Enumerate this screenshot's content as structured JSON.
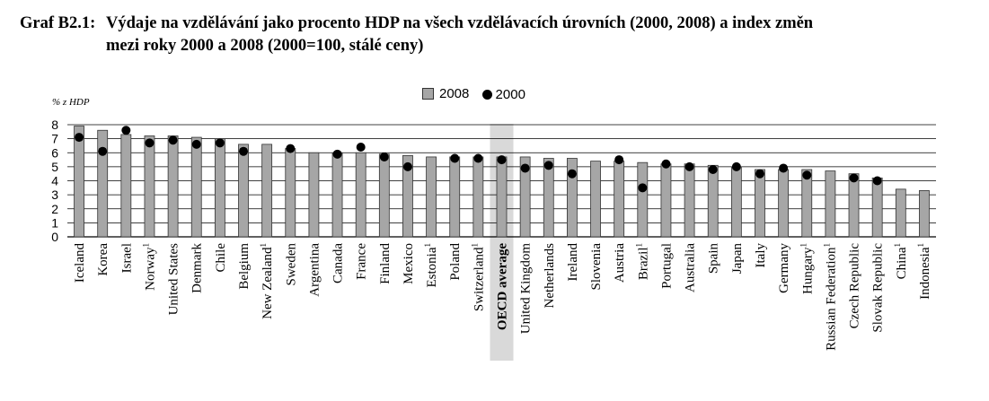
{
  "title": {
    "number": "Graf B2.1:",
    "line1": "Výdaje na vzdělávání jako procento HDP na všech vzdělávacích úrovních (2000, 2008) a index změn",
    "line2": "mezi roky 2000 a 2008 (2000=100, stálé ceny)"
  },
  "legend": {
    "bar_label": "2008",
    "dot_label": "2000"
  },
  "colors": {
    "bar": "#a6a6a6",
    "bar_stroke": "#333333",
    "dot": "#000000",
    "highlight": "#d9d9d9",
    "grid": "#000000"
  },
  "chart_data": {
    "type": "bar",
    "ylabel": "% z HDP",
    "ylim": [
      0,
      8
    ],
    "yticks": [
      0,
      1,
      2,
      3,
      4,
      5,
      6,
      7,
      8
    ],
    "grid": true,
    "legend_position": "top-center",
    "highlight_category": "OECD average",
    "categories": [
      {
        "name": "Iceland",
        "sup": ""
      },
      {
        "name": "Korea",
        "sup": ""
      },
      {
        "name": "Israel",
        "sup": ""
      },
      {
        "name": "Norway",
        "sup": "1"
      },
      {
        "name": "United States",
        "sup": ""
      },
      {
        "name": "Denmark",
        "sup": ""
      },
      {
        "name": "Chile",
        "sup": ""
      },
      {
        "name": "Belgium",
        "sup": ""
      },
      {
        "name": "New Zealand",
        "sup": "1"
      },
      {
        "name": "Sweden",
        "sup": ""
      },
      {
        "name": "Argentina",
        "sup": ""
      },
      {
        "name": "Canada",
        "sup": ""
      },
      {
        "name": "France",
        "sup": ""
      },
      {
        "name": "Finland",
        "sup": ""
      },
      {
        "name": "Mexico",
        "sup": ""
      },
      {
        "name": "Estonia",
        "sup": "1"
      },
      {
        "name": "Poland",
        "sup": ""
      },
      {
        "name": "Switzerland",
        "sup": "1"
      },
      {
        "name": "OECD average",
        "sup": ""
      },
      {
        "name": "United Kingdom",
        "sup": ""
      },
      {
        "name": "Netherlands",
        "sup": ""
      },
      {
        "name": "Ireland",
        "sup": ""
      },
      {
        "name": "Slovenia",
        "sup": ""
      },
      {
        "name": "Austria",
        "sup": ""
      },
      {
        "name": "Brazil",
        "sup": "1"
      },
      {
        "name": "Portugal",
        "sup": ""
      },
      {
        "name": "Australia",
        "sup": ""
      },
      {
        "name": "Spain",
        "sup": ""
      },
      {
        "name": "Japan",
        "sup": ""
      },
      {
        "name": "Italy",
        "sup": ""
      },
      {
        "name": "Germany",
        "sup": ""
      },
      {
        "name": "Hungary",
        "sup": "1"
      },
      {
        "name": "Russian Federation",
        "sup": "1"
      },
      {
        "name": "Czech Republic",
        "sup": ""
      },
      {
        "name": "Slovak Republic",
        "sup": ""
      },
      {
        "name": "China",
        "sup": "1"
      },
      {
        "name": "Indonesia",
        "sup": "1"
      }
    ],
    "series": [
      {
        "name": "2008",
        "kind": "bar",
        "values": [
          7.9,
          7.6,
          7.3,
          7.2,
          7.2,
          7.1,
          7.0,
          6.6,
          6.6,
          6.3,
          6.0,
          6.0,
          6.0,
          5.9,
          5.8,
          5.7,
          5.7,
          5.7,
          5.7,
          5.7,
          5.6,
          5.6,
          5.4,
          5.4,
          5.3,
          5.2,
          5.2,
          5.1,
          5.0,
          4.8,
          4.8,
          4.8,
          4.7,
          4.5,
          4.2,
          3.4,
          3.3
        ]
      },
      {
        "name": "2000",
        "kind": "dot",
        "values": [
          7.1,
          6.1,
          7.6,
          6.7,
          6.9,
          6.6,
          6.7,
          6.1,
          null,
          6.3,
          null,
          5.9,
          6.4,
          5.7,
          5.0,
          null,
          5.6,
          5.6,
          5.5,
          4.9,
          5.1,
          4.5,
          null,
          5.5,
          3.5,
          5.2,
          5.0,
          4.8,
          5.0,
          4.5,
          4.9,
          4.4,
          null,
          4.2,
          4.0,
          null,
          null
        ]
      }
    ]
  }
}
